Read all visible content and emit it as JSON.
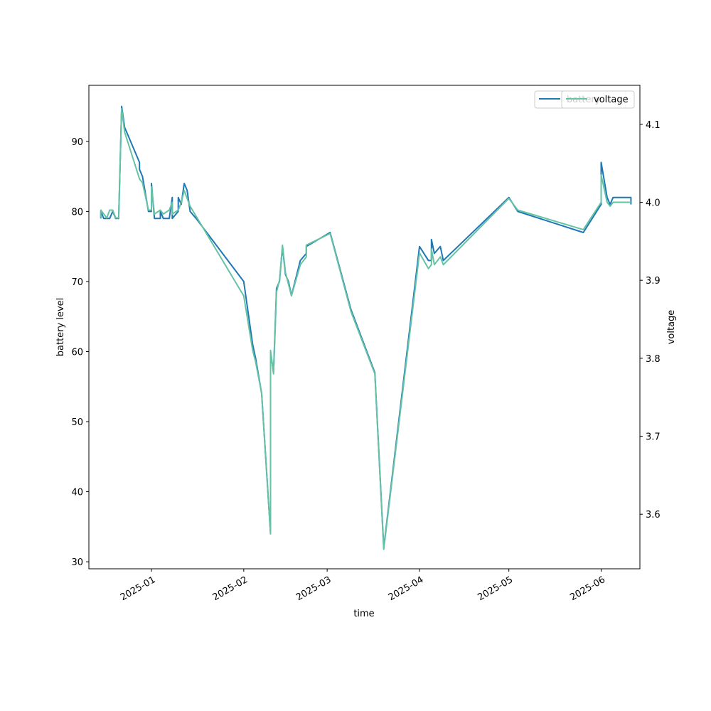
{
  "chart_data": {
    "type": "line",
    "xlabel": "time",
    "ylabel_left": "battery level",
    "ylabel_right": "voltage",
    "x_ticks": [
      "2025-01",
      "2025-02",
      "2025-03",
      "2025-04",
      "2025-05",
      "2025-06"
    ],
    "y_left_ticks": [
      30,
      40,
      50,
      60,
      70,
      80,
      90
    ],
    "y_right_ticks": [
      3.6,
      3.7,
      3.8,
      3.9,
      4.0,
      4.1
    ],
    "y_left_range": [
      29,
      98
    ],
    "y_right_range": [
      3.53,
      4.15
    ],
    "x_range": [
      "2024-12-11",
      "2025-06-14"
    ],
    "legend_placement": "top-right",
    "series": [
      {
        "name": "battery",
        "axis": "left",
        "color": "#1f77b4",
        "points": [
          [
            "2024-12-15",
            79
          ],
          [
            "2024-12-15",
            80
          ],
          [
            "2024-12-16",
            79
          ],
          [
            "2024-12-18",
            79
          ],
          [
            "2024-12-19",
            80
          ],
          [
            "2024-12-20",
            79
          ],
          [
            "2024-12-21",
            79
          ],
          [
            "2024-12-22",
            95
          ],
          [
            "2024-12-23",
            92
          ],
          [
            "2024-12-28",
            87
          ],
          [
            "2024-12-28",
            86
          ],
          [
            "2024-12-29",
            85
          ],
          [
            "2024-12-31",
            80
          ],
          [
            "2025-01-01",
            80
          ],
          [
            "2025-01-01",
            84
          ],
          [
            "2025-01-02",
            79
          ],
          [
            "2025-01-04",
            79
          ],
          [
            "2025-01-04",
            80
          ],
          [
            "2025-01-05",
            79
          ],
          [
            "2025-01-07",
            79
          ],
          [
            "2025-01-08",
            82
          ],
          [
            "2025-01-08",
            79
          ],
          [
            "2025-01-10",
            80
          ],
          [
            "2025-01-10",
            82
          ],
          [
            "2025-01-11",
            81
          ],
          [
            "2025-01-12",
            84
          ],
          [
            "2025-01-13",
            83
          ],
          [
            "2025-01-14",
            80
          ],
          [
            "2025-01-16",
            79
          ],
          [
            "2025-02-01",
            70
          ],
          [
            "2025-02-04",
            61
          ],
          [
            "2025-02-05",
            59
          ],
          [
            "2025-02-07",
            54
          ],
          [
            "2025-02-10",
            34
          ],
          [
            "2025-02-10",
            60
          ],
          [
            "2025-02-11",
            57
          ],
          [
            "2025-02-12",
            69
          ],
          [
            "2025-02-13",
            70
          ],
          [
            "2025-02-14",
            75
          ],
          [
            "2025-02-15",
            71
          ],
          [
            "2025-02-16",
            70
          ],
          [
            "2025-02-17",
            68
          ],
          [
            "2025-02-20",
            73
          ],
          [
            "2025-02-22",
            74
          ],
          [
            "2025-02-22",
            75
          ],
          [
            "2025-03-02",
            77
          ],
          [
            "2025-03-09",
            66
          ],
          [
            "2025-03-17",
            57
          ],
          [
            "2025-03-20",
            32
          ],
          [
            "2025-04-01",
            75
          ],
          [
            "2025-04-04",
            73
          ],
          [
            "2025-04-05",
            73
          ],
          [
            "2025-04-05",
            76
          ],
          [
            "2025-04-06",
            74
          ],
          [
            "2025-04-08",
            75
          ],
          [
            "2025-04-09",
            73
          ],
          [
            "2025-05-01",
            82
          ],
          [
            "2025-05-04",
            80
          ],
          [
            "2025-05-26",
            77
          ],
          [
            "2025-06-01",
            81
          ],
          [
            "2025-06-01",
            87
          ],
          [
            "2025-06-03",
            82
          ],
          [
            "2025-06-04",
            81
          ],
          [
            "2025-06-05",
            82
          ],
          [
            "2025-06-11",
            82
          ],
          [
            "2025-06-11",
            81
          ]
        ]
      },
      {
        "name": "voltage",
        "axis": "right",
        "color": "#66c2a5",
        "points": [
          [
            "2024-12-15",
            3.98
          ],
          [
            "2024-12-15",
            3.99
          ],
          [
            "2024-12-17",
            3.98
          ],
          [
            "2024-12-18",
            3.99
          ],
          [
            "2024-12-19",
            3.99
          ],
          [
            "2024-12-20",
            3.98
          ],
          [
            "2024-12-21",
            3.98
          ],
          [
            "2024-12-22",
            4.12
          ],
          [
            "2024-12-23",
            4.09
          ],
          [
            "2024-12-28",
            4.03
          ],
          [
            "2024-12-29",
            4.025
          ],
          [
            "2024-12-31",
            3.99
          ],
          [
            "2025-01-01",
            3.99
          ],
          [
            "2025-01-01",
            4.02
          ],
          [
            "2025-01-02",
            3.985
          ],
          [
            "2025-01-04",
            3.99
          ],
          [
            "2025-01-05",
            3.985
          ],
          [
            "2025-01-07",
            3.99
          ],
          [
            "2025-01-08",
            4.0
          ],
          [
            "2025-01-08",
            3.985
          ],
          [
            "2025-01-10",
            3.99
          ],
          [
            "2025-01-11",
            4.0
          ],
          [
            "2025-01-12",
            4.015
          ],
          [
            "2025-01-13",
            4.005
          ],
          [
            "2025-01-14",
            3.995
          ],
          [
            "2025-02-01",
            3.88
          ],
          [
            "2025-02-04",
            3.81
          ],
          [
            "2025-02-05",
            3.795
          ],
          [
            "2025-02-07",
            3.755
          ],
          [
            "2025-02-10",
            3.575
          ],
          [
            "2025-02-10",
            3.81
          ],
          [
            "2025-02-11",
            3.78
          ],
          [
            "2025-02-12",
            3.885
          ],
          [
            "2025-02-13",
            3.9
          ],
          [
            "2025-02-14",
            3.945
          ],
          [
            "2025-02-15",
            3.91
          ],
          [
            "2025-02-17",
            3.88
          ],
          [
            "2025-02-20",
            3.92
          ],
          [
            "2025-02-22",
            3.93
          ],
          [
            "2025-02-22",
            3.945
          ],
          [
            "2025-03-02",
            3.96
          ],
          [
            "2025-03-09",
            3.86
          ],
          [
            "2025-03-17",
            3.78
          ],
          [
            "2025-03-20",
            3.555
          ],
          [
            "2025-04-01",
            3.935
          ],
          [
            "2025-04-04",
            3.915
          ],
          [
            "2025-04-05",
            3.92
          ],
          [
            "2025-04-05",
            3.94
          ],
          [
            "2025-04-06",
            3.92
          ],
          [
            "2025-04-08",
            3.93
          ],
          [
            "2025-04-09",
            3.92
          ],
          [
            "2025-05-01",
            4.005
          ],
          [
            "2025-05-04",
            3.99
          ],
          [
            "2025-05-26",
            3.965
          ],
          [
            "2025-06-01",
            4.0
          ],
          [
            "2025-06-01",
            4.035
          ],
          [
            "2025-06-03",
            4.0
          ],
          [
            "2025-06-04",
            3.995
          ],
          [
            "2025-06-05",
            4.0
          ],
          [
            "2025-06-11",
            4.0
          ]
        ]
      }
    ]
  }
}
